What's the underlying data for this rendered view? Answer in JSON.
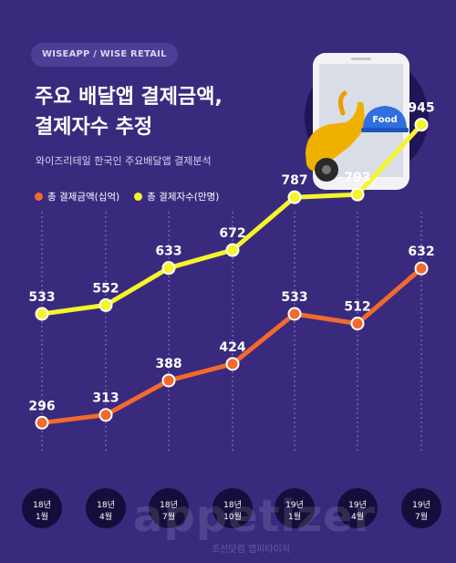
{
  "header": {
    "badge": "WISEAPP / WISE RETAIL",
    "title_line1": "주요 배달앱 결제금액,",
    "title_line2": "결제자수 추정",
    "subtitle": "와이즈리테일 한국인 주요배달앱 결제분석"
  },
  "illustration": {
    "box_label": "Food",
    "icon": "delivery-scooter-phone-illustration"
  },
  "watermark": {
    "main": "appetizer",
    "sub": "조선닷컴 앱피타이저"
  },
  "colors": {
    "background": "#3a2a7e",
    "payment_amount": "#f26a2e",
    "payers": "#f5f52a",
    "date_pill": "#140f3a"
  },
  "chart_data": {
    "type": "line",
    "categories": [
      "18년\n1월",
      "18년\n4월",
      "18년\n7월",
      "18년\n10월",
      "19년\n1월",
      "19년\n4월",
      "19년\n7월"
    ],
    "series": [
      {
        "name": "총 결제금액(십억)",
        "values": [
          296,
          313,
          388,
          424,
          533,
          512,
          632
        ]
      },
      {
        "name": "총 결제자수(만명)",
        "values": [
          533,
          552,
          633,
          672,
          787,
          793,
          945
        ]
      }
    ],
    "ylim": [
      0,
      1000
    ],
    "grid": "vertical dotted lines per category",
    "legend": "top-left",
    "data_labels": true
  }
}
